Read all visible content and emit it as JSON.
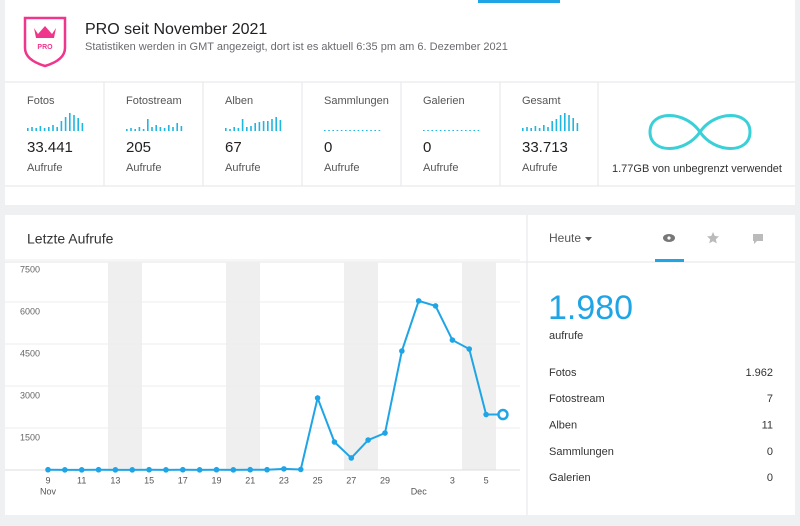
{
  "header": {
    "title": "PRO seit November 2021",
    "subtitle": "Statistiken werden in GMT angezeigt, dort ist es aktuell 6:35 pm am 6. Dezember 2021",
    "badge": "PRO"
  },
  "stats": [
    {
      "label": "Fotos",
      "value": "33.441",
      "unit": "Aufrufe",
      "spark": [
        3,
        4,
        3,
        5,
        3,
        4,
        6,
        4,
        10,
        14,
        18,
        16,
        13,
        8
      ]
    },
    {
      "label": "Fotostream",
      "value": "205",
      "unit": "Aufrufe",
      "spark": [
        2,
        3,
        2,
        4,
        2,
        12,
        4,
        6,
        4,
        3,
        6,
        4,
        8,
        5
      ]
    },
    {
      "label": "Alben",
      "value": "67",
      "unit": "Aufrufe",
      "spark": [
        3,
        2,
        4,
        3,
        12,
        4,
        5,
        8,
        9,
        10,
        10,
        12,
        14,
        11
      ]
    },
    {
      "label": "Sammlungen",
      "value": "0",
      "unit": "Aufrufe",
      "spark": [
        1,
        1,
        1,
        1,
        1,
        1,
        1,
        1,
        1,
        1,
        1,
        1,
        1,
        1
      ]
    },
    {
      "label": "Galerien",
      "value": "0",
      "unit": "Aufrufe",
      "spark": [
        1,
        1,
        1,
        1,
        1,
        1,
        1,
        1,
        1,
        1,
        1,
        1,
        1,
        1
      ]
    },
    {
      "label": "Gesamt",
      "value": "33.713",
      "unit": "Aufrufe",
      "spark": [
        3,
        4,
        3,
        5,
        3,
        6,
        4,
        10,
        12,
        16,
        18,
        16,
        13,
        8
      ]
    }
  ],
  "storage": {
    "text": "1.77GB von unbegrenzt verwendet"
  },
  "panel": {
    "period": "Heute",
    "big": "1.980",
    "big_unit": "aufrufe",
    "rows": [
      [
        "Fotos",
        "1.962"
      ],
      [
        "Fotostream",
        "7"
      ],
      [
        "Alben",
        "11"
      ],
      [
        "Sammlungen",
        "0"
      ],
      [
        "Galerien",
        "0"
      ]
    ]
  },
  "chart_data": {
    "type": "line",
    "title": "Letzte Aufrufe",
    "color": "#1fa5e6",
    "categories": [
      "9",
      null,
      "11",
      null,
      "13",
      null,
      "15",
      null,
      "17",
      null,
      "19",
      null,
      "21",
      null,
      "23",
      null,
      "25",
      null,
      "27",
      null,
      "29",
      null,
      null,
      null,
      "3",
      null,
      "5",
      null
    ],
    "month_labels": [
      {
        "index": 0,
        "label": "Nov"
      },
      {
        "index": 22,
        "label": "Dec"
      }
    ],
    "values": [
      10,
      5,
      5,
      10,
      5,
      5,
      10,
      5,
      10,
      5,
      10,
      5,
      10,
      10,
      40,
      20,
      2570,
      1000,
      430,
      1070,
      1320,
      4250,
      6040,
      5860,
      4640,
      4320,
      1980,
      1980
    ],
    "ylim": [
      0,
      7500
    ],
    "yticks": [
      1500,
      3000,
      4500,
      6000,
      7500
    ],
    "grid": true
  }
}
